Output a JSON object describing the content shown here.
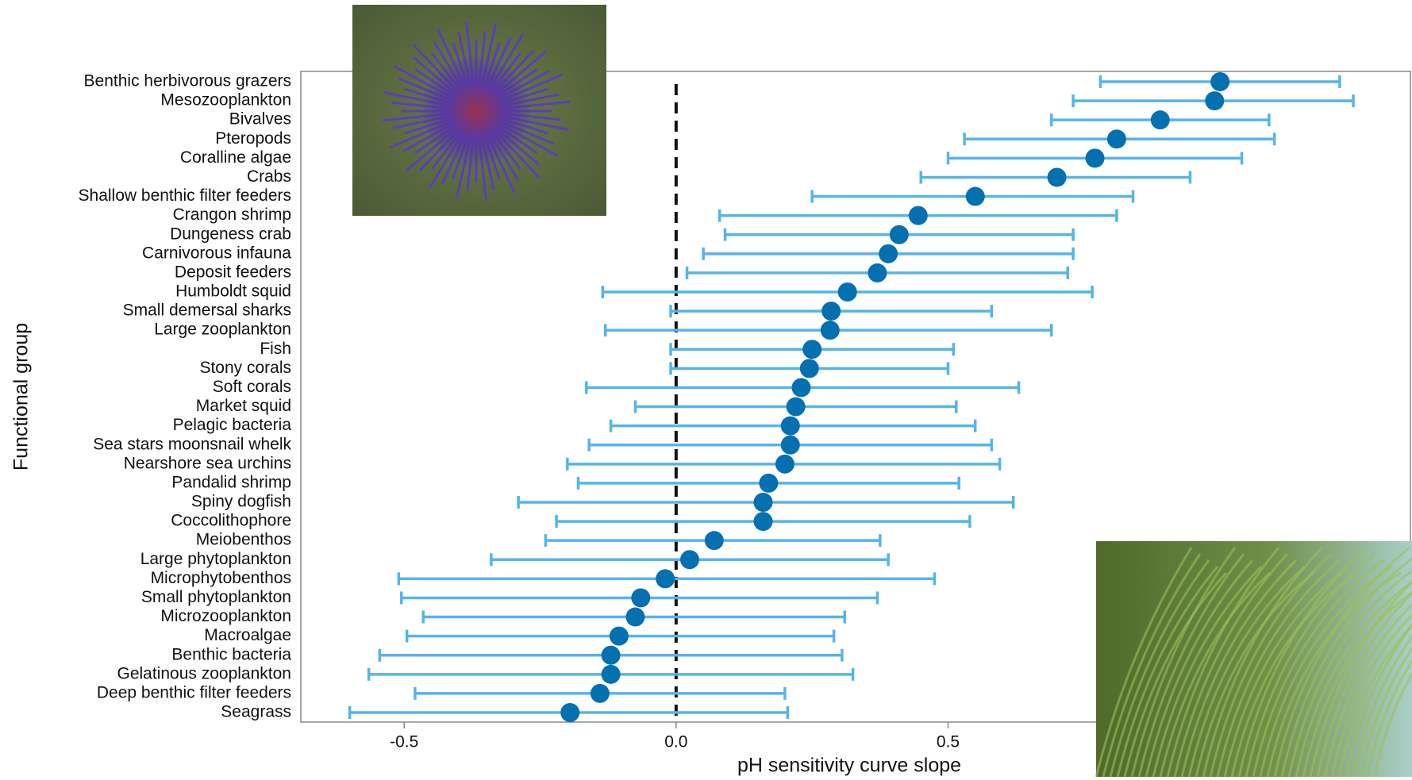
{
  "chart_data": {
    "type": "dot_errorbar",
    "x_label": "pH sensitivity curve slope",
    "y_label": "Functional group",
    "categories": [
      "Benthic herbivorous grazers",
      "Mesozooplankton",
      "Bivalves",
      "Pteropods",
      "Coralline algae",
      "Crabs",
      "Shallow benthic filter feeders",
      "Crangon shrimp",
      "Dungeness crab",
      "Carnivorous infauna",
      "Deposit feeders",
      "Humboldt squid",
      "Small demersal sharks",
      "Large zooplankton",
      "Fish",
      "Stony corals",
      "Soft corals",
      "Market squid",
      "Pelagic bacteria",
      "Sea stars moonsnail whelk",
      "Nearshore sea urchins",
      "Pandalid shrimp",
      "Spiny dogfish",
      "Coccolithophore",
      "Meiobenthos",
      "Large phytoplankton",
      "Microphytobenthos",
      "Small phytoplankton",
      "Microzooplankton",
      "Macroalgae",
      "Benthic bacteria",
      "Gelatinous zooplankton",
      "Deep benthic filter feeders",
      "Seagrass"
    ],
    "series": [
      {
        "color": "#0570b0",
        "error_color": "#56b4e9",
        "values": [
          1.0,
          0.99,
          0.89,
          0.81,
          0.77,
          0.7,
          0.55,
          0.445,
          0.41,
          0.39,
          0.37,
          0.315,
          0.285,
          0.283,
          0.25,
          0.245,
          0.23,
          0.22,
          0.21,
          0.21,
          0.2,
          0.17,
          0.16,
          0.16,
          0.07,
          0.025,
          -0.02,
          -0.065,
          -0.075,
          -0.105,
          -0.12,
          -0.12,
          -0.14,
          -0.195
        ],
        "lower": [
          0.78,
          0.73,
          0.69,
          0.53,
          0.5,
          0.45,
          0.25,
          0.08,
          0.09,
          0.05,
          0.02,
          -0.135,
          -0.01,
          -0.13,
          -0.01,
          -0.01,
          -0.165,
          -0.075,
          -0.12,
          -0.16,
          -0.2,
          -0.18,
          -0.29,
          -0.22,
          -0.24,
          -0.34,
          -0.51,
          -0.505,
          -0.465,
          -0.495,
          -0.545,
          -0.565,
          -0.48,
          -0.6
        ],
        "upper": [
          1.22,
          1.245,
          1.09,
          1.1,
          1.04,
          0.945,
          0.84,
          0.81,
          0.73,
          0.73,
          0.72,
          0.765,
          0.58,
          0.69,
          0.51,
          0.5,
          0.63,
          0.515,
          0.55,
          0.58,
          0.595,
          0.52,
          0.62,
          0.54,
          0.375,
          0.39,
          0.475,
          0.37,
          0.31,
          0.29,
          0.305,
          0.325,
          0.2,
          0.205
        ]
      }
    ],
    "xlim": [
      -0.69,
      1.35
    ],
    "xticks": [
      {
        "value": -0.5,
        "label": "-0.5"
      },
      {
        "value": 0,
        "label": "0.0"
      },
      {
        "value": 0.5,
        "label": "0.5"
      }
    ]
  }
}
